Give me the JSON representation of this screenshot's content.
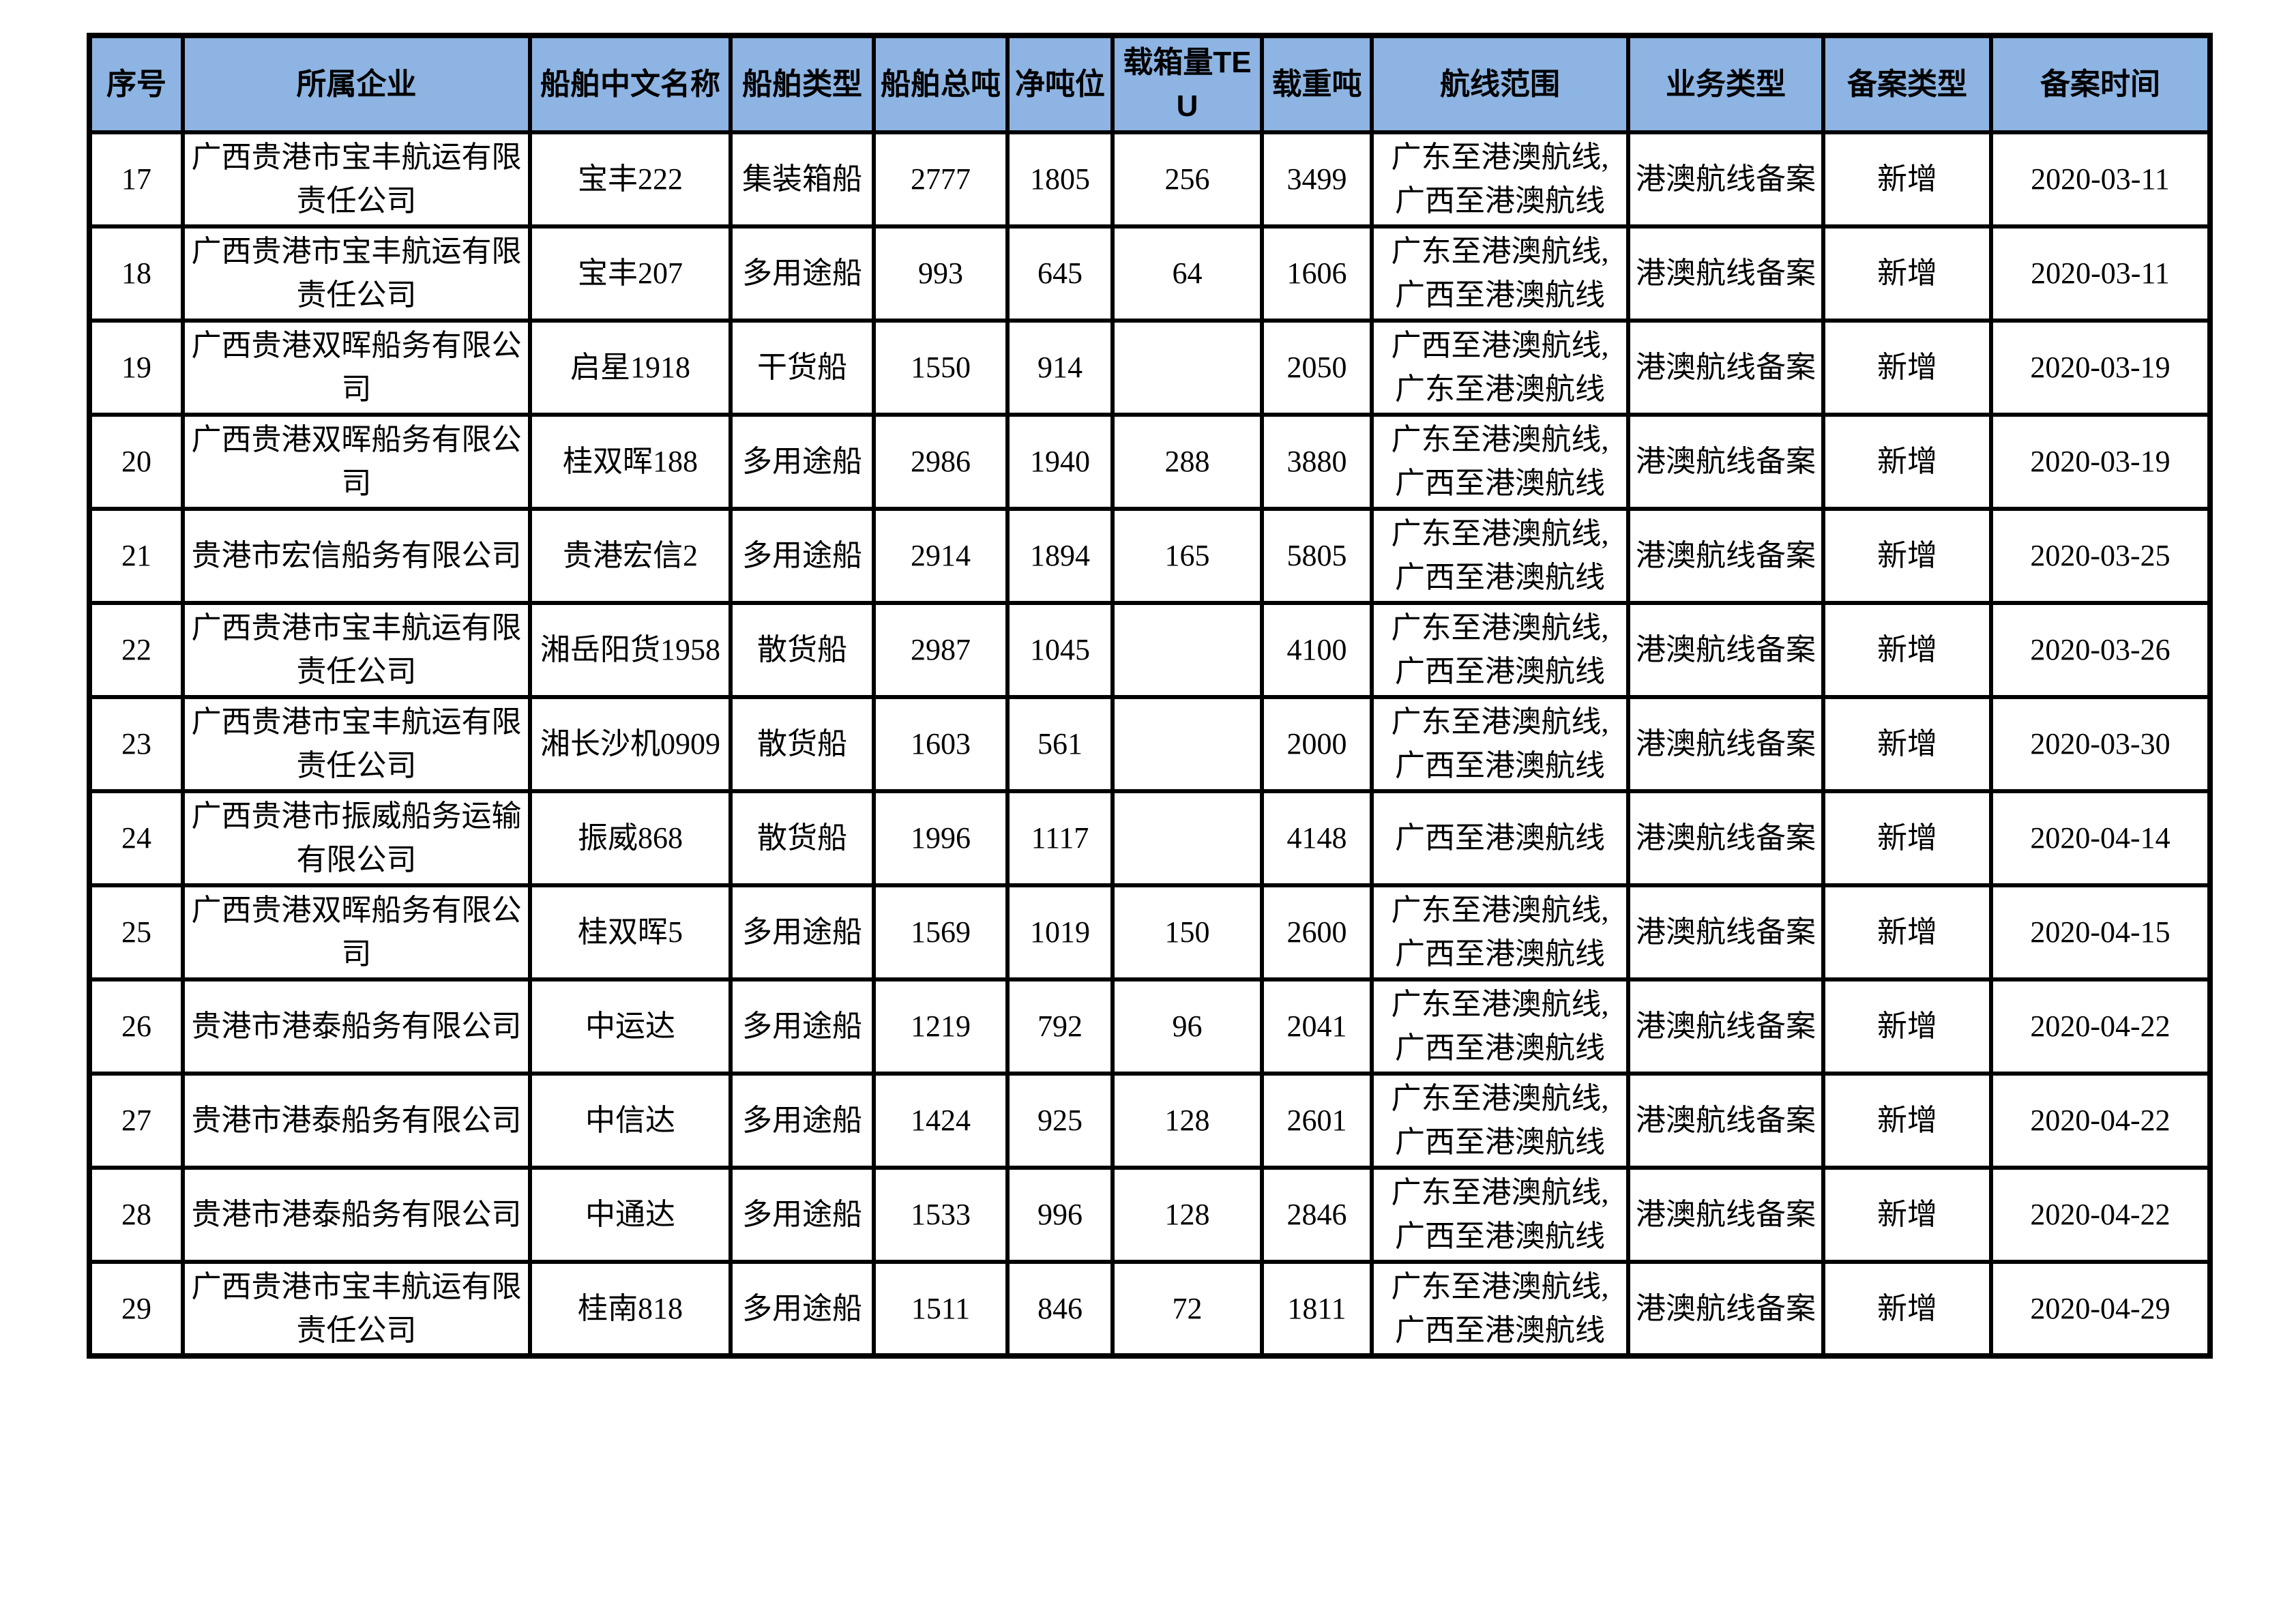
{
  "colors": {
    "header_bg": "#8DB4E2",
    "border": "#000000",
    "text": "#000000"
  },
  "table": {
    "columns": [
      {
        "key": "seq",
        "label": "序号"
      },
      {
        "key": "company",
        "label": "所属企业"
      },
      {
        "key": "ship_name",
        "label": "船舶中文名称"
      },
      {
        "key": "ship_type",
        "label": "船舶类型"
      },
      {
        "key": "gross_tonnage",
        "label": "船舶总吨"
      },
      {
        "key": "net_tonnage",
        "label": "净吨位"
      },
      {
        "key": "teu",
        "label": "载箱量TEU"
      },
      {
        "key": "deadweight",
        "label": "载重吨"
      },
      {
        "key": "route",
        "label": "航线范围"
      },
      {
        "key": "business_type",
        "label": "业务类型"
      },
      {
        "key": "filing_type",
        "label": "备案类型"
      },
      {
        "key": "filing_date",
        "label": "备案时间"
      }
    ],
    "rows": [
      {
        "seq": "17",
        "company": "广西贵港市宝丰航运有限责任公司",
        "ship_name": "宝丰222",
        "ship_type": "集装箱船",
        "gross_tonnage": "2777",
        "net_tonnage": "1805",
        "teu": "256",
        "deadweight": "3499",
        "route": "广东至港澳航线,\n广西至港澳航线",
        "business_type": "港澳航线备案",
        "filing_type": "新增",
        "filing_date": "2020-03-11"
      },
      {
        "seq": "18",
        "company": "广西贵港市宝丰航运有限责任公司",
        "ship_name": "宝丰207",
        "ship_type": "多用途船",
        "gross_tonnage": "993",
        "net_tonnage": "645",
        "teu": "64",
        "deadweight": "1606",
        "route": "广东至港澳航线,\n广西至港澳航线",
        "business_type": "港澳航线备案",
        "filing_type": "新增",
        "filing_date": "2020-03-11"
      },
      {
        "seq": "19",
        "company": "广西贵港双晖船务有限公司",
        "ship_name": "启星1918",
        "ship_type": "干货船",
        "gross_tonnage": "1550",
        "net_tonnage": "914",
        "teu": "",
        "deadweight": "2050",
        "route": "广西至港澳航线,\n广东至港澳航线",
        "business_type": "港澳航线备案",
        "filing_type": "新增",
        "filing_date": "2020-03-19"
      },
      {
        "seq": "20",
        "company": "广西贵港双晖船务有限公司",
        "ship_name": "桂双晖188",
        "ship_type": "多用途船",
        "gross_tonnage": "2986",
        "net_tonnage": "1940",
        "teu": "288",
        "deadweight": "3880",
        "route": "广东至港澳航线,\n广西至港澳航线",
        "business_type": "港澳航线备案",
        "filing_type": "新增",
        "filing_date": "2020-03-19"
      },
      {
        "seq": "21",
        "company": "贵港市宏信船务有限公司",
        "ship_name": "贵港宏信2",
        "ship_type": "多用途船",
        "gross_tonnage": "2914",
        "net_tonnage": "1894",
        "teu": "165",
        "deadweight": "5805",
        "route": "广东至港澳航线,\n广西至港澳航线",
        "business_type": "港澳航线备案",
        "filing_type": "新增",
        "filing_date": "2020-03-25"
      },
      {
        "seq": "22",
        "company": "广西贵港市宝丰航运有限责任公司",
        "ship_name": "湘岳阳货1958",
        "ship_type": "散货船",
        "gross_tonnage": "2987",
        "net_tonnage": "1045",
        "teu": "",
        "deadweight": "4100",
        "route": "广东至港澳航线,\n广西至港澳航线",
        "business_type": "港澳航线备案",
        "filing_type": "新增",
        "filing_date": "2020-03-26"
      },
      {
        "seq": "23",
        "company": "广西贵港市宝丰航运有限责任公司",
        "ship_name": "湘长沙机0909",
        "ship_type": "散货船",
        "gross_tonnage": "1603",
        "net_tonnage": "561",
        "teu": "",
        "deadweight": "2000",
        "route": "广东至港澳航线,\n广西至港澳航线",
        "business_type": "港澳航线备案",
        "filing_type": "新增",
        "filing_date": "2020-03-30"
      },
      {
        "seq": "24",
        "company": "广西贵港市振威船务运输有限公司",
        "ship_name": "振威868",
        "ship_type": "散货船",
        "gross_tonnage": "1996",
        "net_tonnage": "1117",
        "teu": "",
        "deadweight": "4148",
        "route": "广西至港澳航线",
        "business_type": "港澳航线备案",
        "filing_type": "新增",
        "filing_date": "2020-04-14"
      },
      {
        "seq": "25",
        "company": "广西贵港双晖船务有限公司",
        "ship_name": "桂双晖5",
        "ship_type": "多用途船",
        "gross_tonnage": "1569",
        "net_tonnage": "1019",
        "teu": "150",
        "deadweight": "2600",
        "route": "广东至港澳航线,\n广西至港澳航线",
        "business_type": "港澳航线备案",
        "filing_type": "新增",
        "filing_date": "2020-04-15"
      },
      {
        "seq": "26",
        "company": "贵港市港泰船务有限公司",
        "ship_name": "中运达",
        "ship_type": "多用途船",
        "gross_tonnage": "1219",
        "net_tonnage": "792",
        "teu": "96",
        "deadweight": "2041",
        "route": "广东至港澳航线,\n广西至港澳航线",
        "business_type": "港澳航线备案",
        "filing_type": "新增",
        "filing_date": "2020-04-22"
      },
      {
        "seq": "27",
        "company": "贵港市港泰船务有限公司",
        "ship_name": "中信达",
        "ship_type": "多用途船",
        "gross_tonnage": "1424",
        "net_tonnage": "925",
        "teu": "128",
        "deadweight": "2601",
        "route": "广东至港澳航线,\n广西至港澳航线",
        "business_type": "港澳航线备案",
        "filing_type": "新增",
        "filing_date": "2020-04-22"
      },
      {
        "seq": "28",
        "company": "贵港市港泰船务有限公司",
        "ship_name": "中通达",
        "ship_type": "多用途船",
        "gross_tonnage": "1533",
        "net_tonnage": "996",
        "teu": "128",
        "deadweight": "2846",
        "route": "广东至港澳航线,\n广西至港澳航线",
        "business_type": "港澳航线备案",
        "filing_type": "新增",
        "filing_date": "2020-04-22"
      },
      {
        "seq": "29",
        "company": "广西贵港市宝丰航运有限责任公司",
        "ship_name": "桂南818",
        "ship_type": "多用途船",
        "gross_tonnage": "1511",
        "net_tonnage": "846",
        "teu": "72",
        "deadweight": "1811",
        "route": "广东至港澳航线,\n广西至港澳航线",
        "business_type": "港澳航线备案",
        "filing_type": "新增",
        "filing_date": "2020-04-29"
      }
    ]
  }
}
